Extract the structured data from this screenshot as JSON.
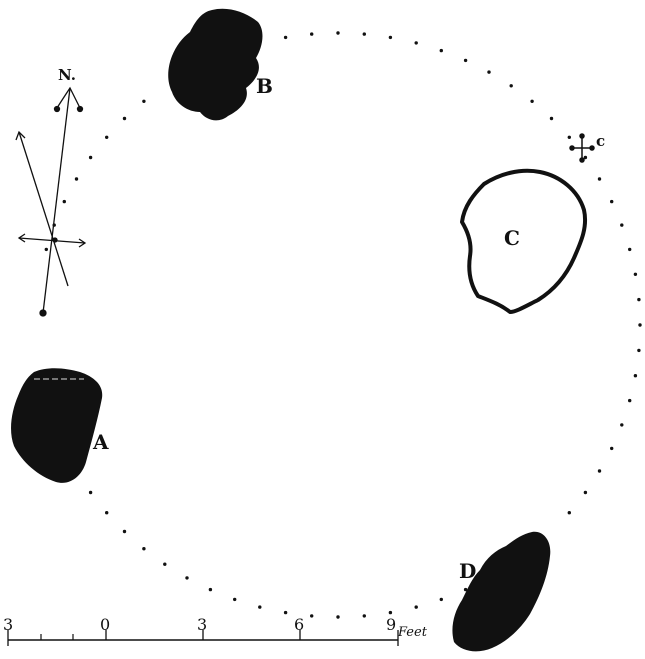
{
  "compass": {
    "north_label": "N."
  },
  "stones": [
    {
      "id": "A",
      "label": "A",
      "fill": "black"
    },
    {
      "id": "B",
      "label": "B",
      "fill": "black"
    },
    {
      "id": "C",
      "label": "C",
      "fill": "outline"
    },
    {
      "id": "D",
      "label": "D",
      "fill": "black"
    }
  ],
  "cross_marker": {
    "label": "c"
  },
  "scale_bar": {
    "ticks": [
      "3",
      "0",
      "3",
      "6",
      "9"
    ],
    "unit": "Feet"
  },
  "colors": {
    "ink": "#111111",
    "paper": "#ffffff"
  }
}
